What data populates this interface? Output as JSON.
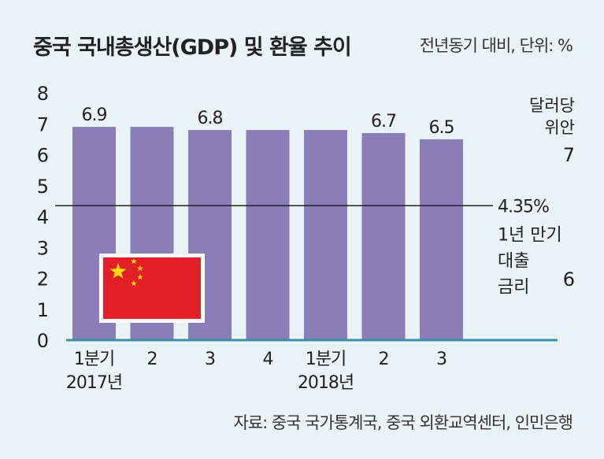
{
  "title": "중국 국내총생산(GDP) 및 환율 추이",
  "unit_note": "전년동기 대비, 단위: %",
  "source": "자료: 중국 국가통계국, 중국 외환교역센터, 인민은행",
  "colors": {
    "bar": "#8a7eb8",
    "axis": "#3f8fa6",
    "background": "#e9f2f4",
    "text": "#222222"
  },
  "icons": {
    "flag": "china-flag-icon"
  },
  "chart_data": {
    "type": "bar",
    "title": "중국 국내총생산(GDP) 및 환율 추이",
    "categories": [
      "1분기\n2017년",
      "2",
      "3",
      "4",
      "1분기\n2018년",
      "2",
      "3"
    ],
    "values": [
      6.9,
      6.9,
      6.8,
      6.8,
      6.8,
      6.7,
      6.5
    ],
    "data_labels": [
      "6.9",
      "",
      "6.8",
      "",
      "",
      "6.7",
      "6.5"
    ],
    "ylim": [
      0,
      8
    ],
    "yticks": [
      "0",
      "1",
      "2",
      "3",
      "4",
      "5",
      "6",
      "7",
      "8"
    ],
    "reference_line": {
      "value": 4.35,
      "label": "4.35%",
      "description": [
        "1년 만기",
        "대출",
        "금리"
      ]
    },
    "secondary_axis": {
      "label": [
        "달러당",
        "위안"
      ],
      "ticks": [
        "7",
        "6"
      ]
    },
    "grid": false,
    "legend": "none"
  }
}
